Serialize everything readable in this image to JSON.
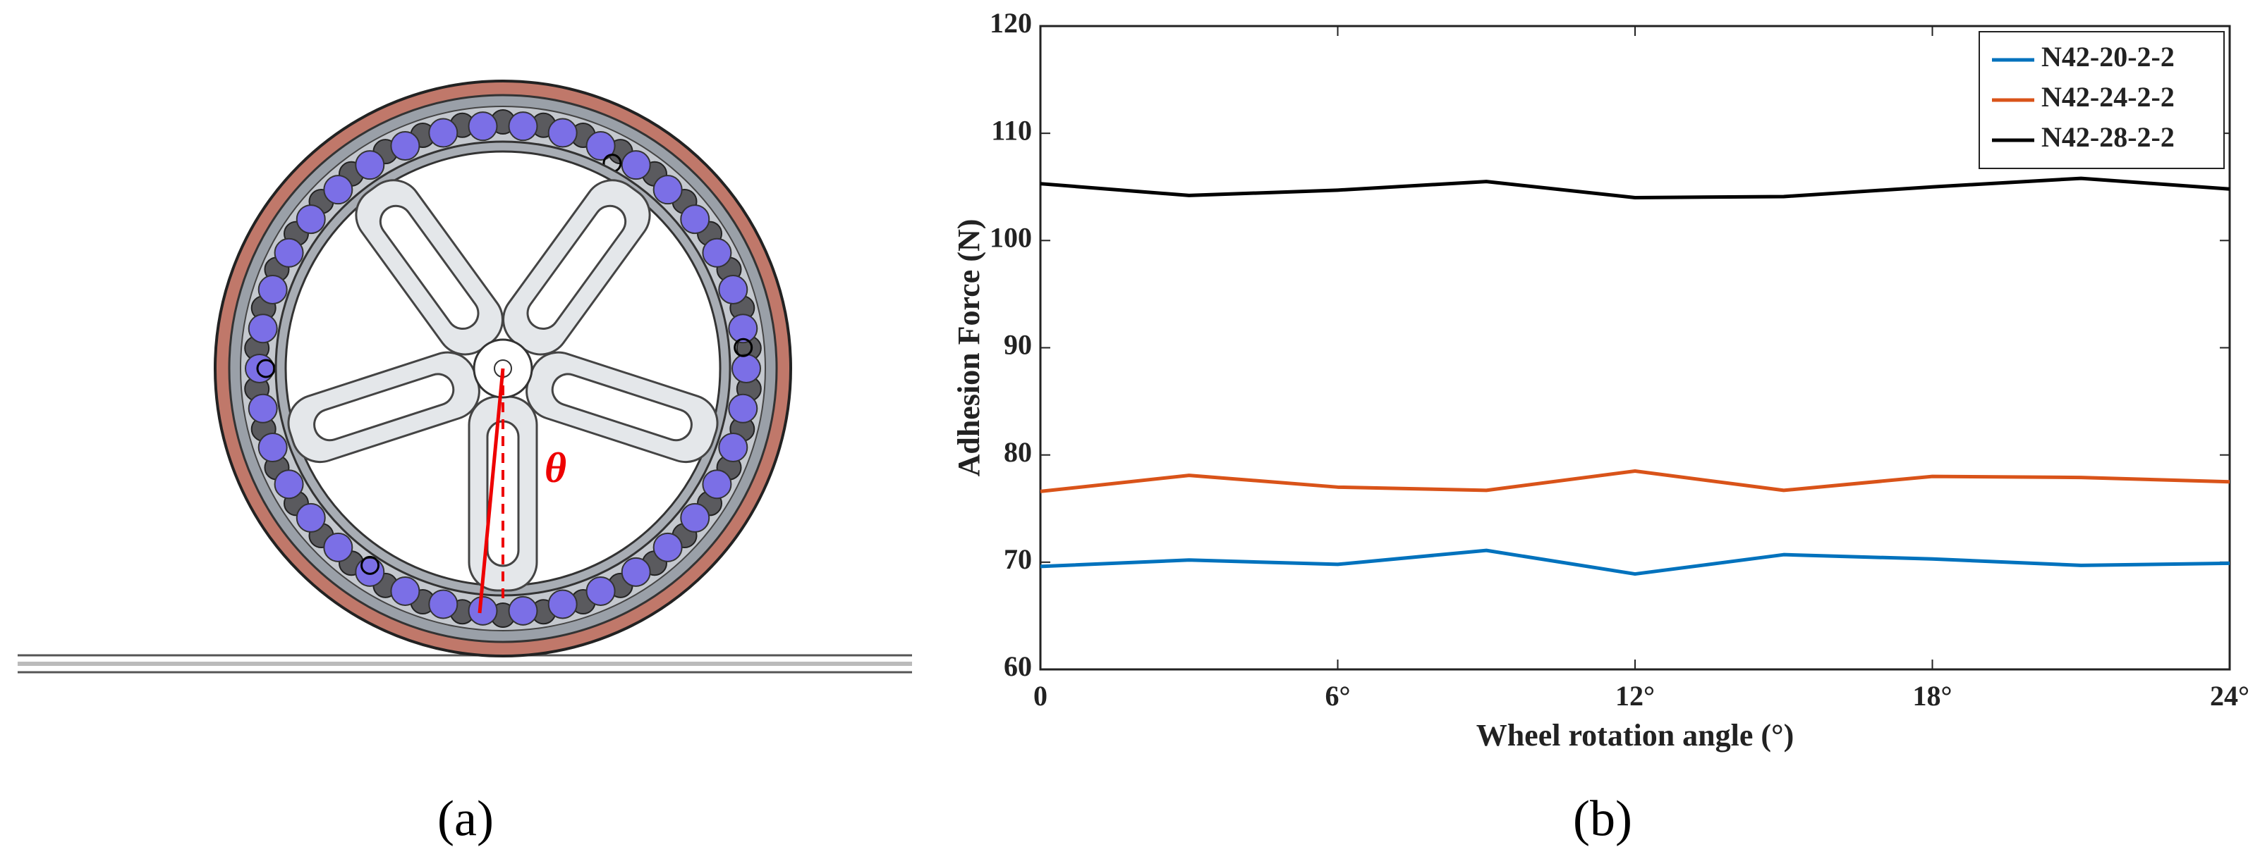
{
  "panels": {
    "a": "(a)",
    "b": "(b)"
  },
  "diagram": {
    "angle_label": "θ"
  },
  "chart_data": {
    "type": "line",
    "xlabel": "Wheel rotation angle (°)",
    "ylabel": "Adhesion Force (N)",
    "x": [
      0,
      3,
      6,
      9,
      12,
      15,
      18,
      21,
      24
    ],
    "series": [
      {
        "name": "N42-20-2-2",
        "color": "#0072bd",
        "values": [
          69.6,
          70.2,
          69.8,
          71.1,
          68.9,
          70.7,
          70.3,
          69.7,
          69.9
        ]
      },
      {
        "name": "N42-24-2-2",
        "color": "#d95319",
        "values": [
          76.6,
          78.1,
          77.0,
          76.7,
          78.5,
          76.7,
          78.0,
          77.9,
          77.5
        ]
      },
      {
        "name": "N42-28-2-2",
        "color": "#000000",
        "values": [
          105.3,
          104.2,
          104.7,
          105.5,
          104.0,
          104.1,
          105.0,
          105.8,
          104.8
        ]
      }
    ],
    "xlim": [
      0,
      24
    ],
    "xticks": [
      0,
      {
        "value": 6,
        "label": "6°"
      },
      {
        "value": 12,
        "label": "12°"
      },
      {
        "value": 18,
        "label": "18°"
      },
      {
        "value": 24,
        "label": "24°"
      }
    ],
    "ylim": [
      60,
      120
    ],
    "yticks": [
      60,
      70,
      80,
      90,
      100,
      110,
      120
    ],
    "legend": "upper right"
  }
}
